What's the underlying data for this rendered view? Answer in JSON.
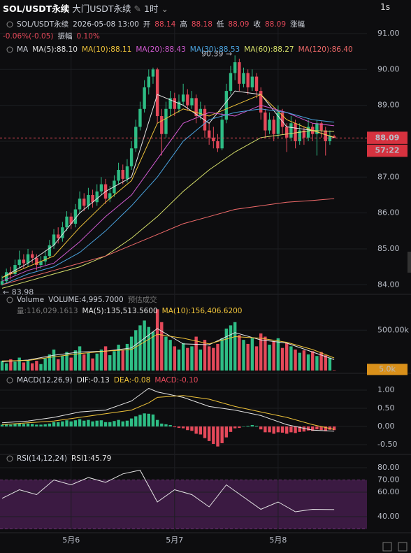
{
  "header": {
    "symbol": "SOL/USDT永续",
    "subtitle": "大门USDT永续",
    "interval": "1时",
    "speed": "1s"
  },
  "chart_data": [
    {
      "type": "candlestick",
      "info": [
        "SOL/USDT永续",
        "2026-05-08 13:00",
        "开",
        "88.14",
        "高",
        "88.18",
        "低",
        "88.09",
        "收",
        "88.09",
        "涨幅"
      ],
      "info2": [
        "-0.06%(-0.05)",
        "振幅",
        "0.10%"
      ],
      "indicator": "MA",
      "ylim": [
        83.85,
        91.35
      ],
      "yticks": [
        {
          "value": 84,
          "label": "84.00"
        },
        {
          "value": 85,
          "label": "85.00"
        },
        {
          "value": 86,
          "label": "86.00"
        },
        {
          "value": 87,
          "label": "87.00"
        },
        {
          "value": 88,
          "label": "88.00"
        },
        {
          "value": 89,
          "label": "89.00"
        },
        {
          "value": 90,
          "label": "90.00"
        },
        {
          "value": 91,
          "label": "91.00"
        }
      ],
      "xticks": [
        {
          "value": 16,
          "label": "5月6"
        },
        {
          "value": 40,
          "label": "5月7"
        },
        {
          "value": 64,
          "label": "5月8"
        }
      ],
      "up_color": "#2ebd85",
      "down_color": "#e5495a",
      "high_label": "90.39 →",
      "low_label": "← 83.98",
      "price_tag": "88.09",
      "countdown": "57:22",
      "ohlc": [
        [
          84.0,
          84.25,
          83.98,
          84.1
        ],
        [
          84.1,
          84.45,
          84.05,
          84.35
        ],
        [
          84.35,
          84.5,
          84.15,
          84.3
        ],
        [
          84.3,
          84.7,
          84.25,
          84.55
        ],
        [
          84.55,
          84.95,
          84.45,
          84.7
        ],
        [
          84.7,
          84.85,
          84.45,
          84.6
        ],
        [
          84.6,
          85.0,
          84.5,
          84.85
        ],
        [
          84.85,
          84.95,
          84.6,
          84.75
        ],
        [
          84.75,
          84.85,
          84.4,
          84.55
        ],
        [
          84.55,
          84.8,
          84.45,
          84.65
        ],
        [
          84.65,
          84.95,
          84.55,
          84.8
        ],
        [
          84.8,
          85.25,
          84.75,
          85.1
        ],
        [
          85.1,
          85.55,
          85.0,
          85.4
        ],
        [
          85.4,
          85.6,
          85.15,
          85.3
        ],
        [
          85.3,
          85.75,
          85.2,
          85.6
        ],
        [
          85.6,
          86.05,
          85.5,
          85.9
        ],
        [
          85.9,
          86.0,
          85.55,
          85.7
        ],
        [
          85.7,
          86.25,
          85.6,
          86.1
        ],
        [
          86.1,
          86.6,
          86.0,
          86.4
        ],
        [
          86.4,
          86.55,
          86.05,
          86.2
        ],
        [
          86.2,
          86.7,
          86.1,
          86.5
        ],
        [
          86.5,
          86.65,
          86.15,
          86.3
        ],
        [
          86.3,
          86.8,
          86.2,
          86.6
        ],
        [
          86.6,
          87.0,
          86.5,
          86.8
        ],
        [
          86.8,
          86.95,
          86.25,
          86.4
        ],
        [
          86.4,
          86.75,
          86.3,
          86.55
        ],
        [
          86.55,
          87.05,
          86.45,
          86.9
        ],
        [
          86.9,
          87.4,
          86.8,
          87.2
        ],
        [
          87.2,
          87.35,
          86.8,
          86.95
        ],
        [
          86.95,
          87.5,
          86.85,
          87.3
        ],
        [
          87.3,
          88.0,
          87.2,
          87.8
        ],
        [
          87.8,
          88.6,
          87.7,
          88.4
        ],
        [
          88.4,
          89.1,
          88.3,
          88.9
        ],
        [
          88.9,
          89.7,
          88.8,
          89.5
        ],
        [
          89.5,
          90.0,
          89.3,
          89.8
        ],
        [
          89.8,
          90.05,
          89.6,
          90.0
        ],
        [
          90.0,
          90.05,
          88.5,
          88.7
        ],
        [
          88.7,
          88.9,
          87.6,
          88.2
        ],
        [
          88.2,
          89.1,
          88.1,
          88.9
        ],
        [
          88.9,
          89.4,
          88.7,
          89.2
        ],
        [
          89.2,
          89.35,
          88.7,
          88.9
        ],
        [
          88.9,
          89.3,
          88.8,
          89.1
        ],
        [
          89.1,
          89.6,
          89.0,
          89.3
        ],
        [
          89.3,
          89.45,
          88.85,
          89.0
        ],
        [
          89.0,
          89.4,
          88.9,
          89.2
        ],
        [
          89.2,
          89.3,
          88.5,
          88.7
        ],
        [
          88.7,
          89.1,
          88.6,
          88.9
        ],
        [
          88.9,
          89.0,
          88.1,
          88.3
        ],
        [
          88.3,
          88.5,
          87.9,
          88.1
        ],
        [
          88.1,
          88.4,
          87.8,
          88.0
        ],
        [
          88.0,
          88.2,
          87.7,
          87.8
        ],
        [
          87.8,
          88.8,
          87.75,
          88.6
        ],
        [
          88.6,
          89.6,
          88.5,
          89.4
        ],
        [
          89.4,
          90.1,
          89.3,
          89.9
        ],
        [
          89.9,
          90.39,
          89.7,
          90.2
        ],
        [
          90.2,
          90.3,
          89.4,
          89.6
        ],
        [
          89.6,
          90.05,
          89.5,
          89.9
        ],
        [
          89.9,
          90.0,
          89.3,
          89.5
        ],
        [
          89.5,
          90.0,
          89.4,
          89.8
        ],
        [
          89.8,
          89.9,
          89.2,
          89.4
        ],
        [
          89.4,
          89.5,
          88.6,
          88.8
        ],
        [
          88.8,
          88.9,
          88.1,
          88.3
        ],
        [
          88.3,
          88.8,
          88.2,
          88.6
        ],
        [
          88.6,
          88.7,
          88.0,
          88.2
        ],
        [
          88.2,
          89.0,
          88.1,
          88.8
        ],
        [
          88.8,
          88.9,
          88.2,
          88.4
        ],
        [
          88.4,
          88.5,
          87.7,
          88.1
        ],
        [
          88.1,
          88.7,
          88.0,
          88.5
        ],
        [
          88.5,
          88.6,
          87.8,
          88.0
        ],
        [
          88.0,
          88.5,
          87.9,
          88.3
        ],
        [
          88.3,
          88.4,
          87.9,
          88.1
        ],
        [
          88.1,
          88.6,
          88.0,
          88.4
        ],
        [
          88.4,
          88.5,
          88.0,
          88.2
        ],
        [
          88.2,
          88.6,
          87.6,
          88.5
        ],
        [
          88.5,
          88.55,
          88.1,
          88.3
        ],
        [
          88.3,
          88.4,
          87.6,
          88.0
        ],
        [
          88.0,
          88.3,
          87.9,
          88.14
        ],
        [
          88.14,
          88.18,
          88.09,
          88.09
        ]
      ],
      "line_x": [
        0,
        6,
        12,
        18,
        24,
        30,
        36,
        42,
        48,
        54,
        60,
        66,
        72,
        77
      ],
      "series": [
        {
          "name": "MA(5):88.10",
          "color": "#e6e6e6",
          "values": [
            84.2,
            84.6,
            85.1,
            86.0,
            86.6,
            87.0,
            89.3,
            89.0,
            88.5,
            89.4,
            89.3,
            88.4,
            88.3,
            88.1
          ]
        },
        {
          "name": "MA(10):88.11",
          "color": "#f0c43a",
          "values": [
            84.2,
            84.5,
            84.8,
            85.6,
            86.3,
            86.9,
            88.5,
            88.9,
            88.7,
            89.0,
            89.3,
            88.6,
            88.3,
            88.11
          ]
        },
        {
          "name": "MA(20):88.43",
          "color": "#d05ad0",
          "values": [
            84.1,
            84.4,
            84.6,
            85.2,
            85.9,
            86.5,
            87.5,
            88.5,
            88.8,
            88.7,
            89.0,
            88.8,
            88.5,
            88.43
          ]
        },
        {
          "name": "MA(30):88.53",
          "color": "#4aa3df",
          "values": [
            84.0,
            84.3,
            84.5,
            84.9,
            85.5,
            86.2,
            87.0,
            88.0,
            88.6,
            88.8,
            88.9,
            88.8,
            88.6,
            88.53
          ]
        },
        {
          "name": "MA(60):88.27",
          "color": "#d6e06a",
          "values": [
            83.9,
            84.1,
            84.3,
            84.5,
            84.8,
            85.3,
            85.9,
            86.6,
            87.2,
            87.7,
            88.1,
            88.2,
            88.3,
            88.27
          ]
        },
        {
          "name": "MA(120):86.40",
          "color": "#f06a6a",
          "values": [
            84.0,
            84.2,
            84.4,
            84.6,
            84.8,
            85.1,
            85.4,
            85.7,
            85.9,
            86.1,
            86.2,
            86.3,
            86.35,
            86.4
          ]
        }
      ]
    },
    {
      "type": "volume",
      "title": "Volume",
      "info": [
        "VOLUME:4,995.7000",
        "预估成交量:116,029.1613"
      ],
      "ylim": [
        0,
        780000
      ],
      "yticks": [
        {
          "value": 500000,
          "label": "500.00k"
        }
      ],
      "tag": "5.0k",
      "values": [
        120000,
        90000,
        140000,
        110000,
        160000,
        100000,
        130000,
        90000,
        120000,
        80000,
        150000,
        200000,
        260000,
        140000,
        180000,
        230000,
        160000,
        250000,
        300000,
        200000,
        220000,
        150000,
        210000,
        260000,
        300000,
        190000,
        240000,
        320000,
        250000,
        330000,
        420000,
        500000,
        560000,
        620000,
        540000,
        480000,
        760000,
        600000,
        420000,
        380000,
        300000,
        260000,
        340000,
        280000,
        300000,
        420000,
        260000,
        380000,
        300000,
        280000,
        330000,
        400000,
        520000,
        560000,
        600000,
        440000,
        380000,
        330000,
        400000,
        300000,
        460000,
        420000,
        320000,
        360000,
        400000,
        280000,
        340000,
        300000,
        260000,
        220000,
        250000,
        200000,
        240000,
        180000,
        230000,
        190000,
        160000,
        4995.7
      ],
      "line_x": [
        0,
        6,
        12,
        18,
        24,
        30,
        36,
        42,
        48,
        54,
        60,
        66,
        72,
        77
      ],
      "series": [
        {
          "name": "MA(5):135,513.5600",
          "color": "#e6e6e6",
          "values": [
            110000,
            130000,
            190000,
            230000,
            240000,
            280000,
            520000,
            330000,
            320000,
            470000,
            380000,
            340000,
            230000,
            135513.56
          ]
        },
        {
          "name": "MA(10):156,406.6200",
          "color": "#f0c43a",
          "values": [
            120000,
            125000,
            170000,
            210000,
            240000,
            260000,
            450000,
            400000,
            330000,
            420000,
            400000,
            350000,
            260000,
            156406.62
          ]
        }
      ]
    },
    {
      "type": "macd",
      "title": "MACD(12,26,9)",
      "ylim": [
        -0.73,
        1.25
      ],
      "yticks": [
        {
          "value": 1,
          "label": "1.00"
        },
        {
          "value": 0.5,
          "label": "0.50"
        },
        {
          "value": 0,
          "label": "0.00"
        },
        {
          "value": -0.5,
          "label": "-0.50"
        }
      ],
      "hist": {
        "name": "MACD:-0.10",
        "color": "#e5495a",
        "up_color": "#2ebd85",
        "values": [
          0.05,
          0.06,
          0.05,
          0.07,
          0.08,
          0.07,
          0.08,
          0.07,
          0.05,
          0.05,
          0.06,
          0.08,
          0.12,
          0.12,
          0.14,
          0.17,
          0.14,
          0.17,
          0.2,
          0.16,
          0.18,
          0.14,
          0.16,
          0.17,
          0.12,
          0.12,
          0.15,
          0.18,
          0.14,
          0.16,
          0.22,
          0.28,
          0.32,
          0.36,
          0.35,
          0.33,
          0.18,
          0.08,
          0.06,
          0.04,
          -0.02,
          -0.04,
          -0.05,
          -0.1,
          -0.12,
          -0.2,
          -0.22,
          -0.32,
          -0.4,
          -0.48,
          -0.55,
          -0.46,
          -0.3,
          -0.15,
          -0.05,
          -0.04,
          0.0,
          0.02,
          0.04,
          0.02,
          -0.08,
          -0.16,
          -0.16,
          -0.2,
          -0.16,
          -0.17,
          -0.2,
          -0.16,
          -0.18,
          -0.15,
          -0.14,
          -0.11,
          -0.12,
          -0.08,
          -0.1,
          -0.13,
          -0.09,
          -0.1
        ]
      },
      "line_x": [
        0,
        6,
        12,
        18,
        24,
        30,
        34,
        36,
        42,
        48,
        54,
        60,
        66,
        72,
        77
      ],
      "series": [
        {
          "name": "DIF:-0.13",
          "color": "#e6e6e6",
          "values": [
            0.1,
            0.15,
            0.25,
            0.4,
            0.45,
            0.7,
            1.05,
            0.95,
            0.8,
            0.55,
            0.45,
            0.3,
            0.05,
            -0.1,
            -0.13
          ]
        },
        {
          "name": "DEA:-0.08",
          "color": "#f0c43a",
          "values": [
            0.05,
            0.1,
            0.15,
            0.25,
            0.35,
            0.45,
            0.65,
            0.8,
            0.85,
            0.75,
            0.55,
            0.4,
            0.25,
            0.05,
            -0.08
          ]
        }
      ]
    },
    {
      "type": "rsi",
      "title": "RSI(14,12,24)",
      "ylim": [
        28,
        88
      ],
      "band": [
        30,
        70
      ],
      "band_color": "#3b1a42",
      "yticks": [
        {
          "value": 80,
          "label": "80.00"
        },
        {
          "value": 70,
          "label": "70.00"
        },
        {
          "value": 60,
          "label": "60.00"
        },
        {
          "value": 40,
          "label": "40.00"
        }
      ],
      "line_x": [
        0,
        4,
        8,
        12,
        16,
        20,
        24,
        28,
        32,
        36,
        40,
        44,
        48,
        52,
        56,
        60,
        64,
        68,
        72,
        77
      ],
      "series": [
        {
          "name": "RSI1:45.79",
          "color": "#e6e6e6",
          "values": [
            55,
            62,
            58,
            70,
            66,
            72,
            68,
            75,
            78,
            52,
            62,
            58,
            48,
            66,
            56,
            46,
            52,
            44,
            46,
            45.79
          ]
        }
      ]
    }
  ]
}
